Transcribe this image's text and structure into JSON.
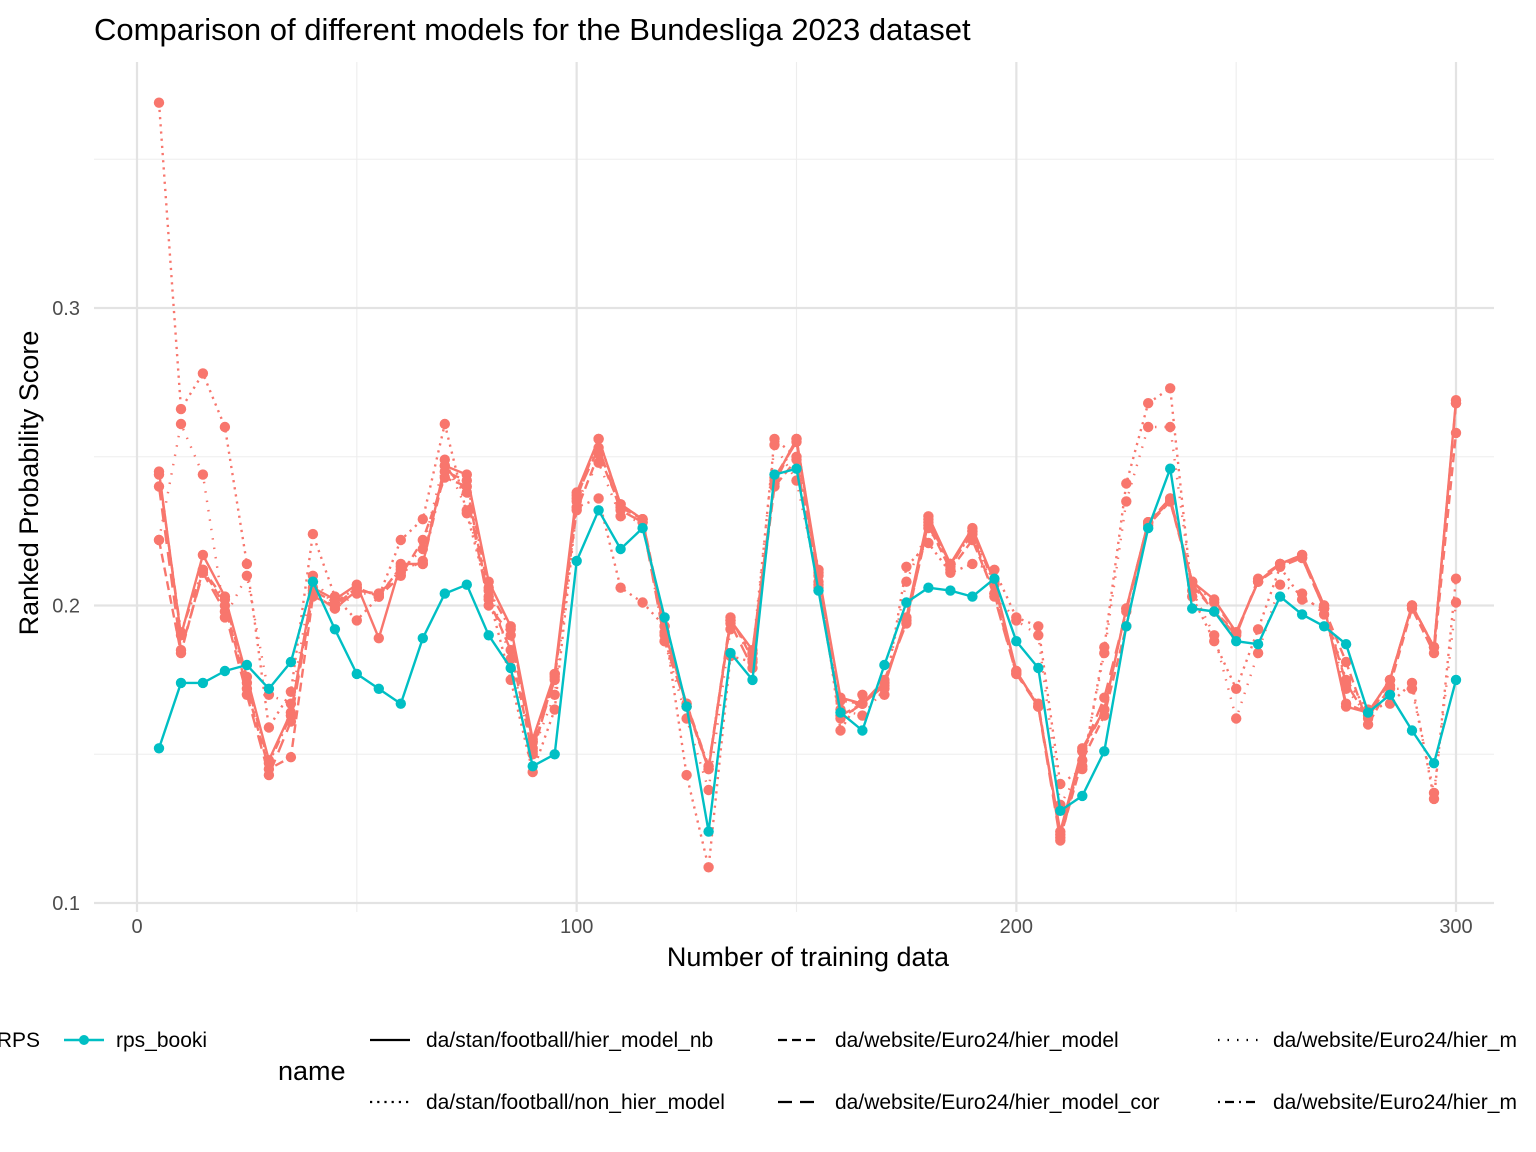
{
  "chart_data": {
    "type": "line",
    "title": "Comparison of different models for the Bundesliga 2023 dataset",
    "xlabel": "Number of training data",
    "ylabel": "Ranked Probability Score",
    "xlim": [
      -10,
      310
    ],
    "ylim": [
      0.1,
      0.37
    ],
    "x_ticks": [
      0,
      100,
      200,
      300
    ],
    "x_tick_labels": [
      "0",
      "100",
      "200",
      "300"
    ],
    "y_ticks": [
      0.1,
      0.2,
      0.3
    ],
    "y_tick_labels": [
      "0.1",
      "0.2",
      "0.3"
    ],
    "grid": true,
    "legend_position": "bottom",
    "colors": {
      "RPS": "#f8766d",
      "rps_booki": "#00bfc4"
    },
    "legend": {
      "colour_entries": [
        {
          "label": "RPS",
          "color": "#f8766d"
        },
        {
          "label": "rps_booki",
          "color": "#00bfc4"
        }
      ],
      "linetype_title": "name",
      "linetype_entries": [
        {
          "label": "da/stan/football/hier_model_nb",
          "dash": "solid"
        },
        {
          "label": "da/stan/football/non_hier_model",
          "dash": "dotted"
        },
        {
          "label": "da/website/Euro24/hier_model",
          "dash": "dashed"
        },
        {
          "label": "da/website/Euro24/hier_model_cor",
          "dash": "longdash"
        },
        {
          "label": "da/website/Euro24/hier_m",
          "dash": "dotted-fine"
        },
        {
          "label": "da/website/Euro24/hier_m",
          "dash": "dotdash"
        }
      ]
    },
    "x": [
      5,
      10,
      15,
      20,
      25,
      30,
      35,
      40,
      45,
      50,
      55,
      60,
      65,
      70,
      75,
      80,
      85,
      90,
      95,
      100,
      105,
      110,
      115,
      120,
      125,
      130,
      135,
      140,
      145,
      150,
      155,
      160,
      165,
      170,
      175,
      180,
      185,
      190,
      195,
      200,
      205,
      210,
      215,
      220,
      225,
      230,
      235,
      240,
      245,
      250,
      255,
      260,
      265,
      270,
      275,
      280,
      285,
      290,
      295,
      300
    ],
    "series": [
      {
        "name": "rps_booki",
        "colour": "rps_booki",
        "linetype": "solid",
        "values": [
          0.152,
          0.174,
          0.174,
          0.178,
          0.18,
          0.172,
          0.181,
          0.208,
          0.192,
          0.177,
          0.172,
          0.167,
          0.189,
          0.204,
          0.207,
          0.19,
          0.179,
          0.146,
          0.15,
          0.215,
          0.232,
          0.219,
          0.226,
          0.196,
          0.166,
          0.124,
          0.184,
          0.175,
          0.244,
          0.246,
          0.205,
          0.164,
          0.158,
          0.18,
          0.201,
          0.206,
          0.205,
          0.203,
          0.209,
          0.188,
          0.179,
          0.131,
          0.136,
          0.151,
          0.193,
          0.226,
          0.246,
          0.199,
          0.198,
          0.188,
          0.187,
          0.203,
          0.197,
          0.193,
          0.187,
          0.164,
          0.17,
          0.158,
          0.147,
          0.175
        ]
      },
      {
        "name": "da/stan/football/hier_model_nb",
        "colour": "RPS",
        "linetype": "solid",
        "values": [
          0.245,
          0.19,
          0.217,
          0.203,
          0.176,
          0.148,
          0.164,
          0.206,
          0.202,
          0.207,
          0.189,
          0.214,
          0.214,
          0.247,
          0.244,
          0.208,
          0.193,
          0.155,
          0.177,
          0.238,
          0.256,
          0.234,
          0.229,
          0.191,
          0.167,
          0.145,
          0.195,
          0.185,
          0.242,
          0.256,
          0.211,
          0.169,
          0.167,
          0.173,
          0.196,
          0.23,
          0.214,
          0.226,
          0.208,
          0.178,
          0.166,
          0.124,
          0.152,
          0.165,
          0.199,
          0.228,
          0.235,
          0.208,
          0.202,
          0.191,
          0.208,
          0.214,
          0.217,
          0.2,
          0.166,
          0.164,
          0.175,
          0.2,
          0.186,
          0.269
        ]
      },
      {
        "name": "da/stan/football/non_hier_model",
        "colour": "RPS",
        "linetype": "dotted",
        "values": [
          0.369,
          0.266,
          0.278,
          0.26,
          0.214,
          0.159,
          0.171,
          0.224,
          0.203,
          0.195,
          0.203,
          0.222,
          0.229,
          0.261,
          0.231,
          0.203,
          0.175,
          0.144,
          0.165,
          0.233,
          0.236,
          0.206,
          0.201,
          0.193,
          0.143,
          0.112,
          0.183,
          0.181,
          0.256,
          0.25,
          0.212,
          0.158,
          0.17,
          0.17,
          0.213,
          0.221,
          0.211,
          0.214,
          0.212,
          0.196,
          0.193,
          0.14,
          0.145,
          0.186,
          0.241,
          0.268,
          0.273,
          0.203,
          0.188,
          0.172,
          0.192,
          0.213,
          0.202,
          0.199,
          0.175,
          0.165,
          0.167,
          0.174,
          0.135,
          0.209
        ]
      },
      {
        "name": "da/website/Euro24/hier_model",
        "colour": "RPS",
        "linetype": "dashed",
        "values": [
          0.222,
          0.184,
          0.212,
          0.2,
          0.172,
          0.145,
          0.149,
          0.203,
          0.2,
          0.206,
          0.203,
          0.21,
          0.222,
          0.243,
          0.24,
          0.202,
          0.185,
          0.15,
          0.177,
          0.232,
          0.251,
          0.233,
          0.229,
          0.193,
          0.166,
          0.145,
          0.196,
          0.182,
          0.24,
          0.249,
          0.206,
          0.163,
          0.167,
          0.174,
          0.195,
          0.227,
          0.212,
          0.222,
          0.204,
          0.177,
          0.167,
          0.122,
          0.148,
          0.163,
          0.193,
          0.227,
          0.235,
          0.207,
          0.198,
          0.191,
          0.208,
          0.213,
          0.216,
          0.199,
          0.181,
          0.16,
          0.173,
          0.199,
          0.184,
          0.258
        ]
      },
      {
        "name": "da/website/Euro24/hier_model_cor",
        "colour": "RPS",
        "linetype": "longdash",
        "values": [
          0.24,
          0.185,
          0.211,
          0.198,
          0.17,
          0.143,
          0.161,
          0.204,
          0.199,
          0.205,
          0.204,
          0.211,
          0.215,
          0.247,
          0.238,
          0.2,
          0.19,
          0.152,
          0.175,
          0.237,
          0.253,
          0.232,
          0.228,
          0.188,
          0.166,
          0.146,
          0.194,
          0.179,
          0.243,
          0.255,
          0.208,
          0.162,
          0.167,
          0.175,
          0.194,
          0.228,
          0.214,
          0.224,
          0.203,
          0.177,
          0.166,
          0.121,
          0.151,
          0.169,
          0.198,
          0.228,
          0.236,
          0.208,
          0.198,
          0.19,
          0.209,
          0.214,
          0.216,
          0.199,
          0.174,
          0.162,
          0.175,
          0.2,
          0.186,
          0.268
        ]
      },
      {
        "name": "da/website/Euro24/hier_m",
        "colour": "RPS",
        "linetype": "dotted-fine",
        "values": [
          0.222,
          0.261,
          0.244,
          0.196,
          0.21,
          0.17,
          0.167,
          0.21,
          0.199,
          0.204,
          0.204,
          0.212,
          0.219,
          0.249,
          0.232,
          0.206,
          0.182,
          0.151,
          0.17,
          0.235,
          0.248,
          0.23,
          0.228,
          0.188,
          0.162,
          0.138,
          0.192,
          0.184,
          0.254,
          0.242,
          0.207,
          0.165,
          0.163,
          0.172,
          0.208,
          0.226,
          0.214,
          0.225,
          0.204,
          0.195,
          0.19,
          0.133,
          0.146,
          0.184,
          0.235,
          0.26,
          0.26,
          0.205,
          0.19,
          0.162,
          0.184,
          0.207,
          0.204,
          0.197,
          0.172,
          0.163,
          0.172,
          0.172,
          0.137,
          0.201
        ]
      },
      {
        "name": "da/website/Euro24/hier_m",
        "colour": "RPS",
        "linetype": "dotdash",
        "values": [
          0.244,
          0.191,
          0.212,
          0.202,
          0.174,
          0.147,
          0.163,
          0.205,
          0.201,
          0.206,
          0.203,
          0.213,
          0.214,
          0.245,
          0.242,
          0.205,
          0.192,
          0.154,
          0.176,
          0.236,
          0.256,
          0.234,
          0.229,
          0.19,
          0.167,
          0.146,
          0.195,
          0.184,
          0.241,
          0.256,
          0.21,
          0.168,
          0.167,
          0.174,
          0.195,
          0.229,
          0.213,
          0.225,
          0.207,
          0.178,
          0.166,
          0.123,
          0.151,
          0.165,
          0.199,
          0.228,
          0.236,
          0.208,
          0.201,
          0.191,
          0.208,
          0.214,
          0.217,
          0.2,
          0.167,
          0.164,
          0.175,
          0.2,
          0.186,
          0.268
        ]
      }
    ]
  }
}
